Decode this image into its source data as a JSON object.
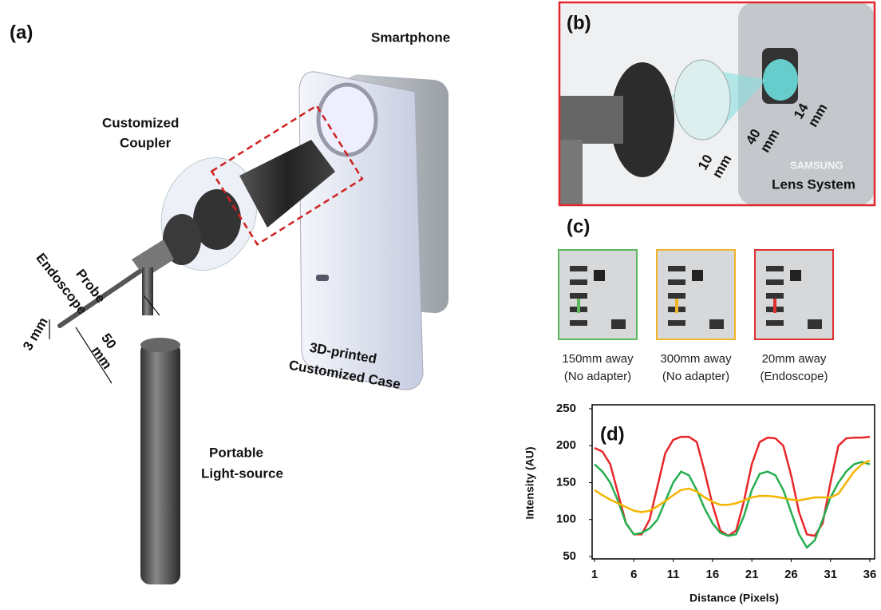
{
  "panel_a": {
    "label": "(a)",
    "smartphone": "Smartphone",
    "coupler": [
      "Customized",
      "Coupler"
    ],
    "probe": [
      "Endoscope",
      "Probe"
    ],
    "diameter": "3 mm",
    "length": [
      "50",
      "mm"
    ],
    "case": [
      "3D-printed",
      "Customized Case"
    ],
    "light": [
      "Portable",
      "Light-source"
    ]
  },
  "panel_b": {
    "label": "(b)",
    "dims": [
      [
        "10",
        "mm"
      ],
      [
        "40",
        "mm"
      ],
      [
        "14",
        "mm"
      ]
    ],
    "brand": "SAMSUNG",
    "caption": "Lens System"
  },
  "panel_c": {
    "label": "(c)",
    "images": [
      {
        "color": "#5cb85c",
        "caption": [
          "150mm away",
          "(No adapter)"
        ]
      },
      {
        "color": "#f0b429",
        "caption": [
          "300mm away",
          "(No adapter)"
        ]
      },
      {
        "color": "#e03030",
        "caption": [
          "20mm away",
          "(Endoscope)"
        ]
      }
    ]
  },
  "chart_data": {
    "type": "line",
    "label": "(d)",
    "x_label": "Distance (Pixels)",
    "y_label": "Intensity (AU)",
    "x": [
      1,
      2,
      3,
      4,
      5,
      6,
      7,
      8,
      9,
      10,
      11,
      12,
      13,
      14,
      15,
      16,
      17,
      18,
      19,
      20,
      21,
      22,
      23,
      24,
      25,
      26,
      27,
      28,
      29,
      30,
      31,
      32,
      33,
      34,
      35,
      36
    ],
    "xlim": [
      1,
      36
    ],
    "xticks": [
      1,
      6,
      11,
      16,
      21,
      26,
      31,
      36
    ],
    "ylim": [
      50,
      250
    ],
    "yticks": [
      50,
      100,
      150,
      200,
      250
    ],
    "series": [
      {
        "color": "#e8262a",
        "values": [
          197,
          192,
          175,
          135,
          95,
          80,
          80,
          100,
          145,
          190,
          208,
          212,
          212,
          205,
          165,
          120,
          85,
          78,
          85,
          125,
          175,
          205,
          211,
          210,
          200,
          160,
          110,
          80,
          78,
          95,
          150,
          200,
          210,
          211,
          211,
          212
        ]
      },
      {
        "color": "#27ae4f",
        "values": [
          175,
          165,
          150,
          125,
          95,
          80,
          82,
          88,
          100,
          125,
          150,
          165,
          160,
          140,
          115,
          95,
          82,
          78,
          80,
          105,
          140,
          162,
          165,
          160,
          140,
          110,
          80,
          62,
          72,
          100,
          130,
          150,
          165,
          175,
          178,
          175
        ]
      },
      {
        "color": "#f4b400",
        "values": [
          140,
          133,
          127,
          122,
          117,
          112,
          110,
          112,
          118,
          125,
          133,
          140,
          142,
          138,
          130,
          124,
          120,
          120,
          122,
          126,
          130,
          132,
          132,
          131,
          129,
          127,
          126,
          128,
          130,
          130,
          130,
          135,
          150,
          165,
          175,
          180
        ]
      }
    ]
  }
}
